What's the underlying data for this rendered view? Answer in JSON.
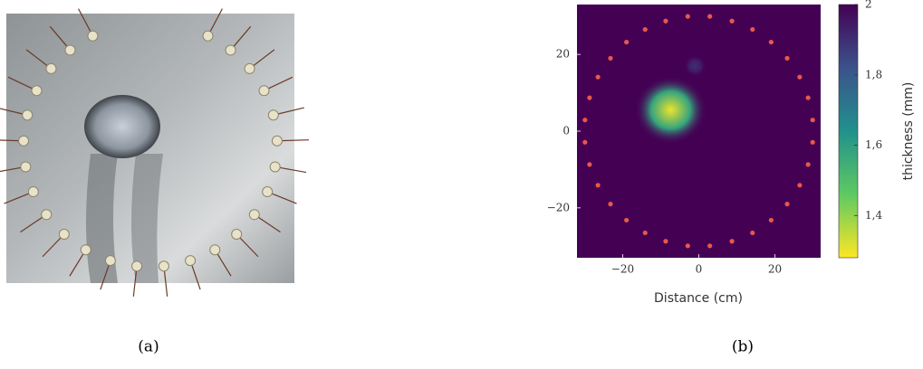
{
  "panels": [
    {
      "caption": "(a)"
    },
    {
      "caption": "(b)"
    }
  ],
  "chart_data": {
    "type": "heatmap",
    "xlabel": "Distance (cm)",
    "xlim": [
      -32,
      32
    ],
    "ylim": [
      -33,
      33
    ],
    "xticks": [
      {
        "value": -20,
        "label": "−20"
      },
      0,
      20
    ],
    "yticks": [
      {
        "value": -20,
        "label": "−20"
      },
      0,
      20
    ],
    "colorbar_label": "thickness (mm)",
    "clim": [
      1.28,
      2
    ],
    "cticks": [
      {
        "value": 1.4,
        "label": "1,4"
      },
      {
        "value": 1.6,
        "label": "1,6"
      },
      {
        "value": 1.8,
        "label": "1,8"
      },
      2
    ],
    "colormap": [
      "#fde725",
      "#5ec962",
      "#21918c",
      "#3b528b",
      "#440154"
    ],
    "defects": {
      "x": [
        -7.4,
        -1
      ],
      "y": [
        5.5,
        17
      ],
      "values": [
        1.3,
        1.9
      ]
    },
    "sensors": {
      "color": "#e8584a",
      "x": [
        29.9,
        28.7,
        26.5,
        23.2,
        19.0,
        14.1,
        8.7,
        2.9,
        -2.9,
        -8.7,
        -14.1,
        -19.0,
        -23.2,
        -26.5,
        -28.7,
        -29.9,
        -29.9,
        -28.7,
        -26.5,
        -23.2,
        -19.0,
        -14.1,
        -8.7,
        -2.9,
        2.9,
        8.7,
        14.1,
        19.0,
        23.2,
        26.5,
        28.7,
        29.9
      ],
      "y": [
        2.9,
        8.7,
        14.1,
        19.0,
        23.2,
        26.5,
        28.7,
        29.9,
        29.9,
        28.7,
        26.5,
        23.2,
        19.0,
        14.1,
        8.7,
        2.9,
        -2.9,
        -8.7,
        -14.1,
        -19.0,
        -23.2,
        -26.5,
        -28.7,
        -29.9,
        -29.9,
        -28.7,
        -26.5,
        -23.2,
        -19.0,
        -14.1,
        -8.7,
        -2.9
      ]
    }
  }
}
